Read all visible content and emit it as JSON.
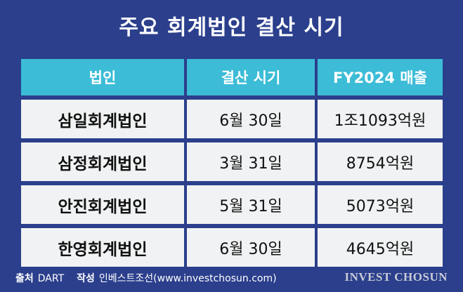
{
  "header": {
    "title": "주요 회계법인 결산 시기"
  },
  "table": {
    "columns": [
      "법인",
      "결산 시기",
      "FY2024 매출"
    ],
    "rows": [
      [
        "삼일회계법인",
        "6월 30일",
        "1조1093억원"
      ],
      [
        "삼정회계법인",
        "3월 31일",
        "8754억원"
      ],
      [
        "안진회계법인",
        "5월 31일",
        "5073억원"
      ],
      [
        "한영회계법인",
        "6월 30일",
        "4645억원"
      ]
    ]
  },
  "footer": {
    "source_label": "출처",
    "source": "DART",
    "author_label": "작성",
    "author": "인베스트조선(www.investchosun.com)",
    "brand": "INVEST CHOSUN"
  }
}
